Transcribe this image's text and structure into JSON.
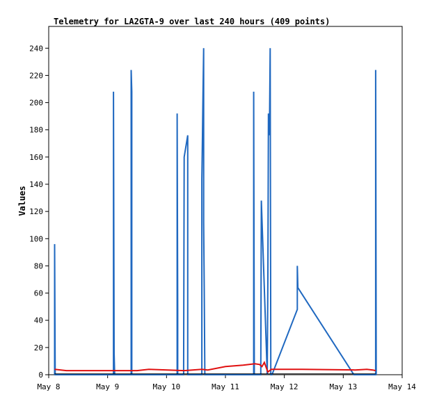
{
  "chart_data": {
    "type": "line",
    "title": "Telemetry for LA2GTA-9 over last 240 hours (409 points)",
    "xlabel": "",
    "ylabel": "Values",
    "xlim": [
      0,
      6
    ],
    "ylim": [
      0,
      256
    ],
    "x_tick_values": [
      0,
      1,
      2,
      3,
      4,
      5,
      6
    ],
    "x_tick_labels": [
      "May 8",
      "May 9",
      "May 10",
      "May 11",
      "May 12",
      "May 13",
      "May 14"
    ],
    "y_ticks": [
      0,
      20,
      40,
      60,
      80,
      100,
      120,
      140,
      160,
      180,
      200,
      220,
      240
    ],
    "grid": false,
    "series": [
      {
        "color": "#1f68c0",
        "x": [
          0.1,
          0.1,
          0.11,
          1.1,
          1.1,
          1.11,
          1.12,
          1.4,
          1.4,
          1.41,
          1.41,
          2.18,
          2.18,
          2.19,
          2.19,
          2.29,
          2.3,
          2.36,
          2.36,
          2.6,
          2.6,
          2.61,
          2.62,
          2.63,
          2.63,
          2.64,
          2.65,
          2.66,
          3.48,
          3.48,
          3.49,
          3.6,
          3.61,
          3.71,
          3.72,
          3.73,
          3.74,
          3.75,
          3.76,
          3.77,
          3.78,
          3.79,
          4.22,
          4.22,
          4.23,
          5.18,
          5.55,
          5.55,
          5.56
        ],
        "y": [
          0,
          96,
          0,
          0,
          208,
          16,
          0,
          0,
          224,
          208,
          0,
          0,
          192,
          48,
          0,
          0,
          160,
          176,
          0,
          0,
          144,
          176,
          208,
          240,
          112,
          64,
          0,
          0,
          0,
          208,
          0,
          0,
          128,
          0,
          72,
          192,
          176,
          192,
          240,
          0,
          0,
          0,
          48,
          80,
          64,
          0,
          0,
          224,
          0
        ]
      },
      {
        "color": "#e01010",
        "x": [
          0.1,
          0.3,
          1.5,
          1.7,
          2.3,
          2.6,
          2.7,
          3.0,
          3.3,
          3.5,
          3.58,
          3.62,
          3.66,
          3.72,
          3.78,
          4.3,
          5.2,
          5.4,
          5.5,
          5.55
        ],
        "y": [
          4,
          3,
          3,
          4,
          3,
          4,
          3.5,
          6,
          7,
          8,
          7.5,
          6,
          9,
          2,
          4,
          4,
          3.5,
          4,
          3.5,
          3
        ]
      },
      {
        "color": "#000000",
        "x": [
          0.1,
          5.55
        ],
        "y": [
          0.6,
          0.6
        ]
      }
    ]
  }
}
